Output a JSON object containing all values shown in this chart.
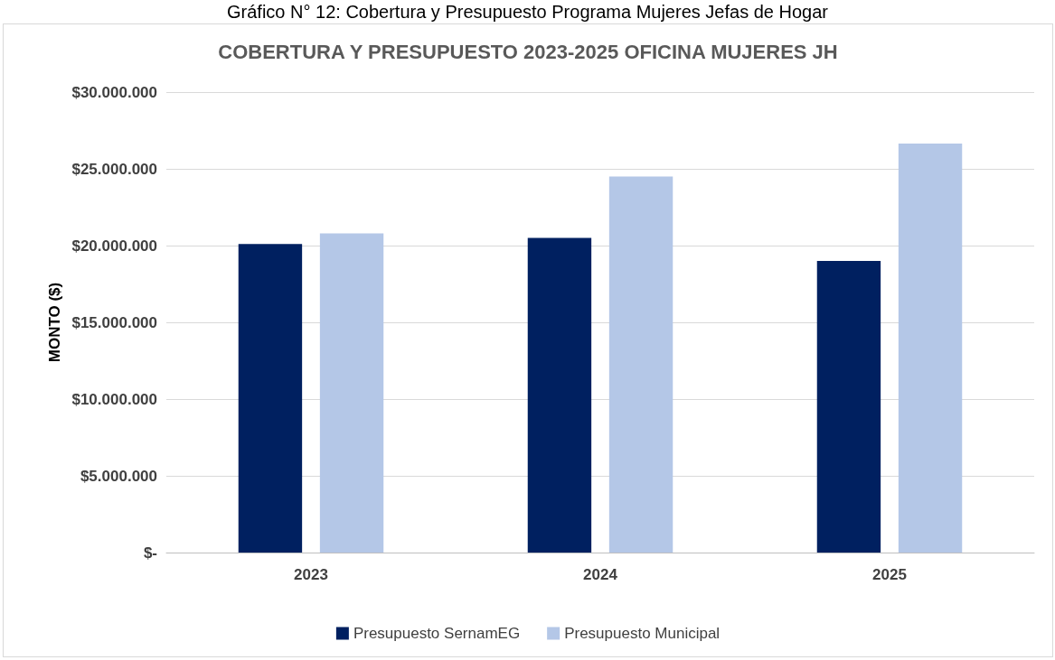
{
  "chart_data": {
    "type": "bar",
    "title": "COBERTURA Y PRESUPUESTO 2023-2025 OFICINA MUJERES JH",
    "annotations": [
      "Gráfico N° 12: Cobertura y Presupuesto Programa Mujeres Jefas de Hogar"
    ],
    "ylabel": "MONTO ($)",
    "categories": [
      "2023",
      "2024",
      "2025"
    ],
    "series": [
      {
        "name": "Presupuesto SernamEG",
        "color": "#002060",
        "values": [
          20100000,
          20500000,
          19000000
        ]
      },
      {
        "name": "Presupuesto Municipal",
        "color": "#b4c7e7",
        "values": [
          20800000,
          24500000,
          26650000
        ]
      }
    ],
    "ylim": [
      0,
      30000000
    ],
    "yticks": [
      {
        "value": 0,
        "label": "$-"
      },
      {
        "value": 5000000,
        "label": "$5.000.000"
      },
      {
        "value": 10000000,
        "label": "$10.000.000"
      },
      {
        "value": 15000000,
        "label": "$15.000.000"
      },
      {
        "value": 20000000,
        "label": "$20.000.000"
      },
      {
        "value": 25000000,
        "label": "$25.000.000"
      },
      {
        "value": 30000000,
        "label": "$30.000.000"
      }
    ],
    "grid": "y",
    "legend": "bottom"
  }
}
